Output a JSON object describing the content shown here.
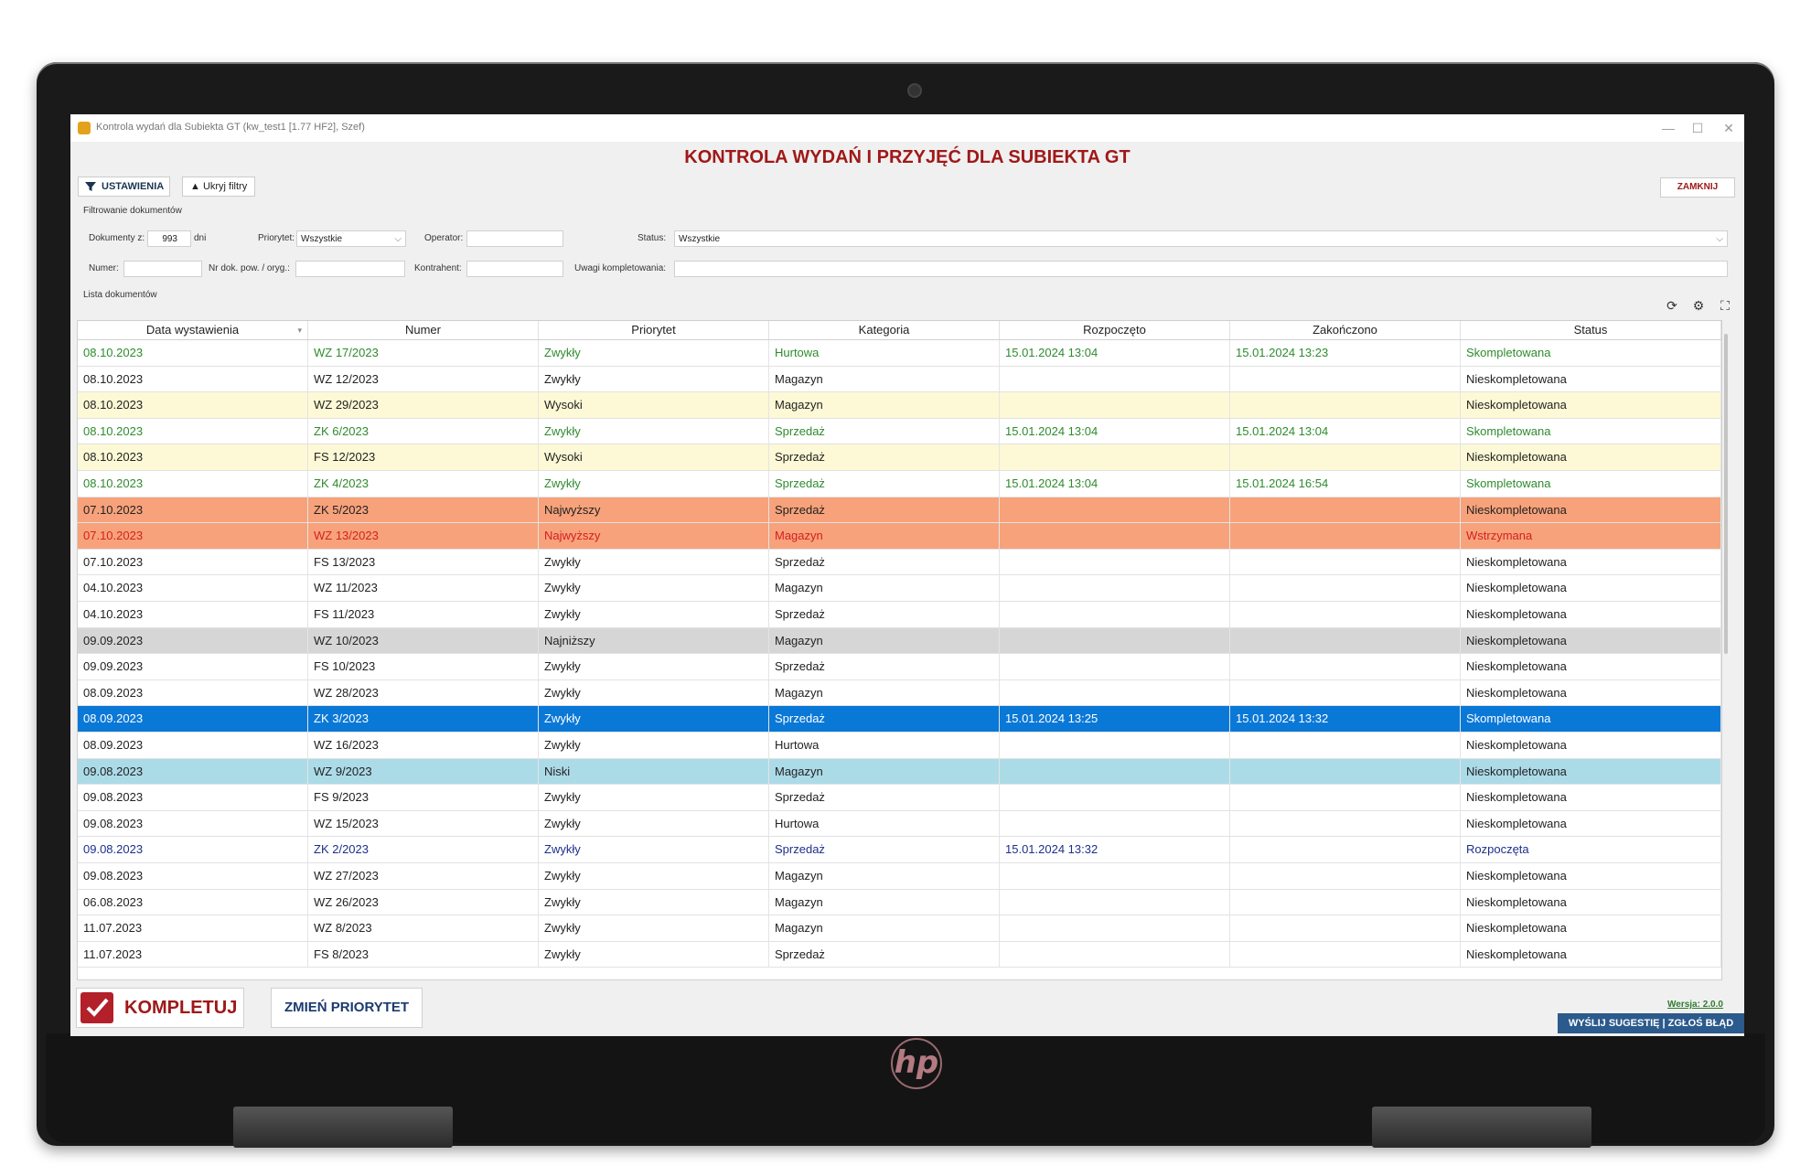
{
  "window": {
    "title": "Kontrola wydań dla Subiekta GT (kw_test1 [1.77 HF2], Szef)",
    "minimize": "—",
    "maximize": "☐",
    "close": "✕"
  },
  "header": {
    "main_title": "KONTROLA WYDAŃ I PRZYJĘĆ DLA SUBIEKTA GT",
    "settings_label": "USTAWIENIA",
    "hide_filters_label": "▲ Ukryj filtry",
    "close_label": "ZAMKNIJ"
  },
  "filters": {
    "section_label": "Filtrowanie dokumentów",
    "docs_from_label": "Dokumenty z:",
    "docs_from_value": "993",
    "docs_from_unit": "dni",
    "priority_label": "Priorytet:",
    "priority_value": "Wszystkie",
    "operator_label": "Operator:",
    "operator_value": "",
    "status_label": "Status:",
    "status_value": "Wszystkie",
    "number_label": "Numer:",
    "number_value": "",
    "orig_doc_label": "Nr dok. pow. / oryg.:",
    "orig_doc_value": "",
    "contractor_label": "Kontrahent:",
    "contractor_value": "",
    "notes_label": "Uwagi kompletowania:",
    "notes_value": ""
  },
  "list": {
    "section_label": "Lista dokumentów",
    "columns": [
      "Data wystawienia",
      "Numer",
      "Priorytet",
      "Kategoria",
      "Rozpoczęto",
      "Zakończono",
      "Status"
    ],
    "rows": [
      {
        "cells": [
          "08.10.2023",
          "WZ 17/2023",
          "Zwykły",
          "Hurtowa",
          "15.01.2024 13:04",
          "15.01.2024 13:23",
          "Skompletowana"
        ],
        "bg": "#ffffff",
        "fg": "#2e8b2e"
      },
      {
        "cells": [
          "08.10.2023",
          "WZ 12/2023",
          "Zwykły",
          "Magazyn",
          "",
          "",
          "Nieskompletowana"
        ],
        "bg": "#ffffff",
        "fg": "#222222"
      },
      {
        "cells": [
          "08.10.2023",
          "WZ 29/2023",
          "Wysoki",
          "Magazyn",
          "",
          "",
          "Nieskompletowana"
        ],
        "bg": "#fdf9d6",
        "fg": "#222222"
      },
      {
        "cells": [
          "08.10.2023",
          "ZK 6/2023",
          "Zwykły",
          "Sprzedaż",
          "15.01.2024 13:04",
          "15.01.2024 13:04",
          "Skompletowana"
        ],
        "bg": "#ffffff",
        "fg": "#2e8b2e"
      },
      {
        "cells": [
          "08.10.2023",
          "FS 12/2023",
          "Wysoki",
          "Sprzedaż",
          "",
          "",
          "Nieskompletowana"
        ],
        "bg": "#fdf9d6",
        "fg": "#222222"
      },
      {
        "cells": [
          "08.10.2023",
          "ZK 4/2023",
          "Zwykły",
          "Sprzedaż",
          "15.01.2024 13:04",
          "15.01.2024 16:54",
          "Skompletowana"
        ],
        "bg": "#ffffff",
        "fg": "#2e8b2e"
      },
      {
        "cells": [
          "07.10.2023",
          "ZK 5/2023",
          "Najwyższy",
          "Sprzedaż",
          "",
          "",
          "Nieskompletowana"
        ],
        "bg": "#f7a27b",
        "fg": "#222222"
      },
      {
        "cells": [
          "07.10.2023",
          "WZ 13/2023",
          "Najwyższy",
          "Magazyn",
          "",
          "",
          "Wstrzymana"
        ],
        "bg": "#f7a27b",
        "fg": "#d42020"
      },
      {
        "cells": [
          "07.10.2023",
          "FS 13/2023",
          "Zwykły",
          "Sprzedaż",
          "",
          "",
          "Nieskompletowana"
        ],
        "bg": "#ffffff",
        "fg": "#222222"
      },
      {
        "cells": [
          "04.10.2023",
          "WZ 11/2023",
          "Zwykły",
          "Magazyn",
          "",
          "",
          "Nieskompletowana"
        ],
        "bg": "#ffffff",
        "fg": "#222222"
      },
      {
        "cells": [
          "04.10.2023",
          "FS 11/2023",
          "Zwykły",
          "Sprzedaż",
          "",
          "",
          "Nieskompletowana"
        ],
        "bg": "#ffffff",
        "fg": "#222222"
      },
      {
        "cells": [
          "09.09.2023",
          "WZ 10/2023",
          "Najniższy",
          "Magazyn",
          "",
          "",
          "Nieskompletowana"
        ],
        "bg": "#d6d6d6",
        "fg": "#222222"
      },
      {
        "cells": [
          "09.09.2023",
          "FS 10/2023",
          "Zwykły",
          "Sprzedaż",
          "",
          "",
          "Nieskompletowana"
        ],
        "bg": "#ffffff",
        "fg": "#222222"
      },
      {
        "cells": [
          "08.09.2023",
          "WZ 28/2023",
          "Zwykły",
          "Magazyn",
          "",
          "",
          "Nieskompletowana"
        ],
        "bg": "#ffffff",
        "fg": "#222222"
      },
      {
        "cells": [
          "08.09.2023",
          "ZK 3/2023",
          "Zwykły",
          "Sprzedaż",
          "15.01.2024 13:25",
          "15.01.2024 13:32",
          "Skompletowana"
        ],
        "bg": "#0a78d7",
        "fg": "#ffffff"
      },
      {
        "cells": [
          "08.09.2023",
          "WZ 16/2023",
          "Zwykły",
          "Hurtowa",
          "",
          "",
          "Nieskompletowana"
        ],
        "bg": "#ffffff",
        "fg": "#222222"
      },
      {
        "cells": [
          "09.08.2023",
          "WZ 9/2023",
          "Niski",
          "Magazyn",
          "",
          "",
          "Nieskompletowana"
        ],
        "bg": "#acdbe8",
        "fg": "#222222"
      },
      {
        "cells": [
          "09.08.2023",
          "FS 9/2023",
          "Zwykły",
          "Sprzedaż",
          "",
          "",
          "Nieskompletowana"
        ],
        "bg": "#ffffff",
        "fg": "#222222"
      },
      {
        "cells": [
          "09.08.2023",
          "WZ 15/2023",
          "Zwykły",
          "Hurtowa",
          "",
          "",
          "Nieskompletowana"
        ],
        "bg": "#ffffff",
        "fg": "#222222"
      },
      {
        "cells": [
          "09.08.2023",
          "ZK 2/2023",
          "Zwykły",
          "Sprzedaż",
          "15.01.2024 13:32",
          "",
          "Rozpoczęta"
        ],
        "bg": "#ffffff",
        "fg": "#1c2f8c"
      },
      {
        "cells": [
          "09.08.2023",
          "WZ 27/2023",
          "Zwykły",
          "Magazyn",
          "",
          "",
          "Nieskompletowana"
        ],
        "bg": "#ffffff",
        "fg": "#222222"
      },
      {
        "cells": [
          "06.08.2023",
          "WZ 26/2023",
          "Zwykły",
          "Magazyn",
          "",
          "",
          "Nieskompletowana"
        ],
        "bg": "#ffffff",
        "fg": "#222222"
      },
      {
        "cells": [
          "11.07.2023",
          "WZ 8/2023",
          "Zwykły",
          "Magazyn",
          "",
          "",
          "Nieskompletowana"
        ],
        "bg": "#ffffff",
        "fg": "#222222"
      },
      {
        "cells": [
          "11.07.2023",
          "FS 8/2023",
          "Zwykły",
          "Sprzedaż",
          "",
          "",
          "Nieskompletowana"
        ],
        "bg": "#ffffff",
        "fg": "#222222"
      }
    ]
  },
  "footer": {
    "complete_label": "KOMPLETUJ",
    "change_priority_label": "ZMIEŃ PRIORYTET",
    "version_label": "Wersja: 2.0.0",
    "feedback_label": "WYŚLIJ SUGESTIĘ | ZGŁOŚ BŁĄD"
  },
  "icons": {
    "refresh": "refresh-icon",
    "settings": "gear-icon",
    "fullscreen": "fullscreen-icon",
    "filter": "filter-icon",
    "check": "checkbox-check-icon",
    "brand": "hp-logo"
  }
}
